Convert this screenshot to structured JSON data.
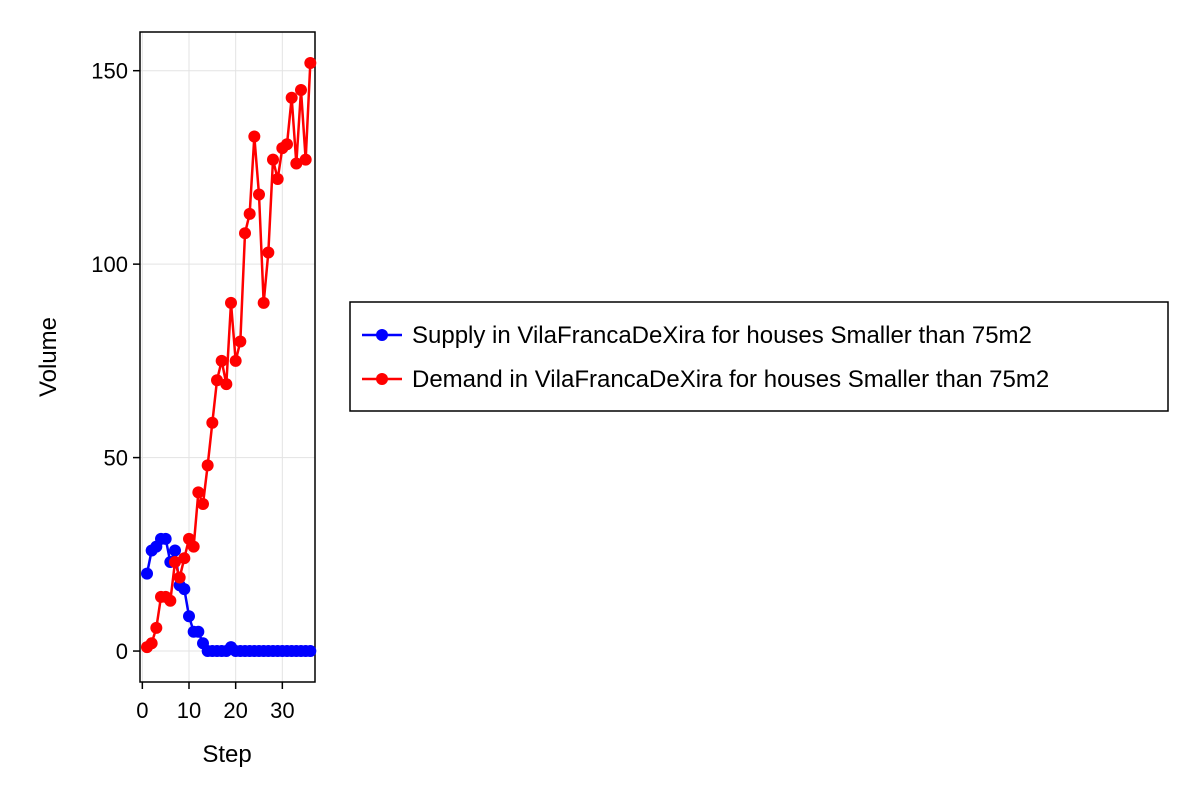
{
  "chart_data": {
    "type": "line",
    "xlabel": "Step",
    "ylabel": "Volume",
    "xlim": [
      -0.5,
      37
    ],
    "ylim": [
      -8,
      160
    ],
    "x_ticks": [
      0,
      10,
      20,
      30
    ],
    "x_tick_labels": [
      "0",
      "10",
      "20",
      "30"
    ],
    "y_ticks": [
      0,
      50,
      100,
      150
    ],
    "y_tick_labels": [
      "0",
      "50",
      "100",
      "150"
    ],
    "grid": true,
    "legend_position": "right",
    "x": [
      1,
      2,
      3,
      4,
      5,
      6,
      7,
      8,
      9,
      10,
      11,
      12,
      13,
      14,
      15,
      16,
      17,
      18,
      19,
      20,
      21,
      22,
      23,
      24,
      25,
      26,
      27,
      28,
      29,
      30,
      31,
      32,
      33,
      34,
      35,
      36
    ],
    "series": [
      {
        "name": "Supply in VilaFrancaDeXira for houses Smaller than 75m2",
        "color": "#0000ff",
        "values": [
          20,
          26,
          27,
          29,
          29,
          23,
          26,
          17,
          16,
          9,
          5,
          5,
          2,
          0,
          0,
          0,
          0,
          0,
          1,
          0,
          0,
          0,
          0,
          0,
          0,
          0,
          0,
          0,
          0,
          0,
          0,
          0,
          0,
          0,
          0,
          0
        ]
      },
      {
        "name": "Demand in VilaFrancaDeXira for houses Smaller than 75m2",
        "color": "#ff0000",
        "values": [
          1,
          2,
          6,
          14,
          14,
          13,
          23,
          19,
          24,
          29,
          27,
          41,
          38,
          48,
          59,
          70,
          75,
          69,
          90,
          75,
          80,
          108,
          113,
          133,
          118,
          90,
          103,
          127,
          122,
          130,
          131,
          143,
          126,
          145,
          127,
          152
        ]
      }
    ]
  }
}
